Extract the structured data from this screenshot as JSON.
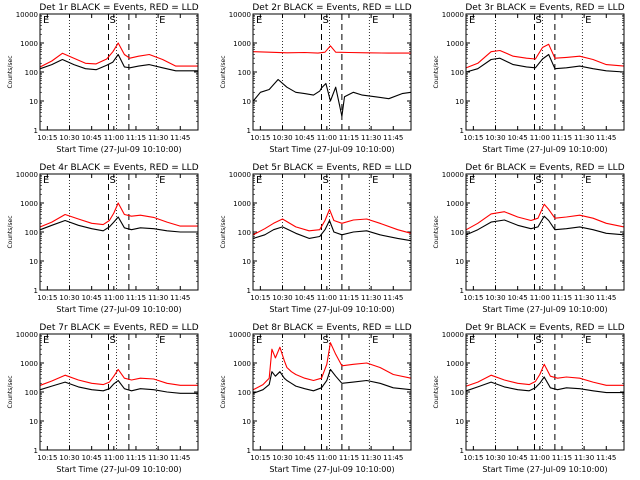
{
  "figure": {
    "background": "#ffffff",
    "x_ticks": [
      "10:15",
      "10:30",
      "10:45",
      "11:00",
      "11:15",
      "11:30",
      "11:45"
    ],
    "x_tick_hours": [
      10.25,
      10.5,
      10.75,
      11.0,
      11.25,
      11.5,
      11.75
    ],
    "y_ticks": [
      "1",
      "10",
      "100",
      "1000",
      "10000"
    ],
    "y_tick_values": [
      1,
      10,
      100,
      1000,
      10000
    ],
    "xlabel": "Start Time (27-Jul-09 10:10:00)",
    "ylabel": "Counts/sec",
    "xlim_hours": [
      10.167,
      11.95
    ],
    "ylim": [
      1,
      10000
    ],
    "y_scale": "log",
    "colors": {
      "events": "#000000",
      "lld": "#ff0000"
    },
    "marker_labels": {
      "start": "S",
      "end": "E"
    }
  },
  "chart_data": [
    {
      "type": "line",
      "title": "Det 1r BLACK = Events, RED = LLD",
      "dotted_lines": [
        10.5,
        11.03,
        11.48
      ],
      "dashed_lines": [
        10.94,
        11.17
      ],
      "marker_letters": [
        {
          "x": 10.19,
          "text": "E"
        },
        {
          "x": 10.94,
          "text": "S"
        },
        {
          "x": 11.5,
          "text": "E"
        }
      ],
      "series": [
        {
          "color": "#ff0000",
          "x": [
            10.17,
            10.3,
            10.42,
            10.55,
            10.68,
            10.8,
            10.92,
            10.99,
            11.05,
            11.12,
            11.18,
            11.28,
            11.4,
            11.55,
            11.7,
            11.95
          ],
          "values": [
            150,
            240,
            440,
            300,
            200,
            190,
            280,
            500,
            1000,
            400,
            300,
            350,
            400,
            270,
            160,
            160
          ]
        },
        {
          "color": "#000000",
          "x": [
            10.17,
            10.3,
            10.42,
            10.55,
            10.68,
            10.8,
            10.92,
            10.99,
            11.05,
            11.12,
            11.18,
            11.28,
            11.4,
            11.55,
            11.7,
            11.95
          ],
          "values": [
            130,
            180,
            270,
            180,
            130,
            120,
            170,
            220,
            400,
            150,
            140,
            160,
            180,
            140,
            110,
            110
          ]
        }
      ]
    },
    {
      "type": "line",
      "title": "Det 2r BLACK = Events, RED = LLD",
      "dotted_lines": [
        10.5,
        11.03,
        11.48
      ],
      "dashed_lines": [
        10.94,
        11.17
      ],
      "marker_letters": [
        {
          "x": 10.19,
          "text": "E"
        },
        {
          "x": 10.94,
          "text": "S"
        },
        {
          "x": 11.5,
          "text": "E"
        }
      ],
      "series": [
        {
          "color": "#ff0000",
          "x": [
            10.17,
            10.35,
            10.55,
            10.75,
            10.9,
            10.98,
            11.04,
            11.1,
            11.25,
            11.45,
            11.7,
            11.95
          ],
          "values": [
            500,
            480,
            460,
            470,
            450,
            480,
            800,
            480,
            470,
            460,
            450,
            450
          ]
        },
        {
          "color": "#000000",
          "x": [
            10.17,
            10.25,
            10.35,
            10.45,
            10.55,
            10.65,
            10.75,
            10.85,
            10.92,
            10.94,
            10.99,
            11.04,
            11.1,
            11.17,
            11.2,
            11.3,
            11.4,
            11.55,
            11.7,
            11.85,
            11.95
          ],
          "values": [
            10,
            20,
            25,
            55,
            30,
            20,
            18,
            16,
            22,
            28,
            40,
            10,
            30,
            3,
            14,
            20,
            16,
            14,
            12,
            18,
            20
          ]
        }
      ]
    },
    {
      "type": "line",
      "title": "Det 3r BLACK = Events, RED = LLD",
      "dotted_lines": [
        10.5,
        11.03,
        11.48
      ],
      "dashed_lines": [
        10.94,
        11.17
      ],
      "marker_letters": [
        {
          "x": 10.19,
          "text": "E"
        },
        {
          "x": 10.94,
          "text": "S"
        },
        {
          "x": 11.5,
          "text": "E"
        }
      ],
      "series": [
        {
          "color": "#ff0000",
          "x": [
            10.17,
            10.3,
            10.45,
            10.55,
            10.7,
            10.85,
            10.95,
            11.03,
            11.1,
            11.17,
            11.3,
            11.45,
            11.6,
            11.75,
            11.95
          ],
          "values": [
            140,
            200,
            500,
            550,
            350,
            300,
            280,
            700,
            900,
            300,
            320,
            350,
            270,
            180,
            160
          ]
        },
        {
          "color": "#000000",
          "x": [
            10.17,
            10.3,
            10.45,
            10.55,
            10.7,
            10.85,
            10.95,
            11.03,
            11.1,
            11.17,
            11.3,
            11.45,
            11.6,
            11.75,
            11.95
          ],
          "values": [
            100,
            130,
            270,
            300,
            180,
            150,
            140,
            280,
            400,
            130,
            140,
            160,
            130,
            110,
            100
          ]
        }
      ]
    },
    {
      "type": "line",
      "title": "Det 4r BLACK = Events, RED = LLD",
      "dotted_lines": [
        10.5,
        11.03,
        11.48
      ],
      "dashed_lines": [
        10.94,
        11.17
      ],
      "marker_letters": [
        {
          "x": 10.19,
          "text": "E"
        },
        {
          "x": 10.94,
          "text": "S"
        },
        {
          "x": 11.5,
          "text": "E"
        }
      ],
      "series": [
        {
          "color": "#ff0000",
          "x": [
            10.17,
            10.3,
            10.45,
            10.6,
            10.75,
            10.88,
            10.95,
            11.0,
            11.05,
            11.12,
            11.2,
            11.3,
            11.45,
            11.6,
            11.75,
            11.95
          ],
          "values": [
            150,
            220,
            400,
            280,
            200,
            180,
            250,
            450,
            1000,
            400,
            350,
            380,
            320,
            220,
            160,
            160
          ]
        },
        {
          "color": "#000000",
          "x": [
            10.17,
            10.3,
            10.45,
            10.6,
            10.75,
            10.88,
            10.95,
            11.0,
            11.05,
            11.12,
            11.2,
            11.3,
            11.45,
            11.6,
            11.75,
            11.95
          ],
          "values": [
            120,
            170,
            250,
            170,
            130,
            110,
            150,
            220,
            330,
            140,
            120,
            140,
            130,
            110,
            100,
            100
          ]
        }
      ]
    },
    {
      "type": "line",
      "title": "Det 5r BLACK = Events, RED = LLD",
      "dotted_lines": [
        10.5,
        11.03,
        11.48
      ],
      "dashed_lines": [
        10.94,
        11.17
      ],
      "marker_letters": [
        {
          "x": 10.19,
          "text": "E"
        },
        {
          "x": 10.94,
          "text": "S"
        },
        {
          "x": 11.5,
          "text": "E"
        }
      ],
      "series": [
        {
          "color": "#ff0000",
          "x": [
            10.17,
            10.3,
            10.4,
            10.5,
            10.65,
            10.8,
            10.92,
            10.98,
            11.03,
            11.08,
            11.17,
            11.3,
            11.45,
            11.6,
            11.8,
            11.95
          ],
          "values": [
            80,
            130,
            200,
            280,
            150,
            110,
            120,
            250,
            600,
            250,
            200,
            260,
            280,
            200,
            120,
            90
          ]
        },
        {
          "color": "#000000",
          "x": [
            10.17,
            10.3,
            10.4,
            10.5,
            10.65,
            10.8,
            10.92,
            10.98,
            11.03,
            11.08,
            11.17,
            11.3,
            11.45,
            11.6,
            11.8,
            11.95
          ],
          "values": [
            60,
            80,
            120,
            150,
            90,
            60,
            70,
            120,
            250,
            100,
            80,
            100,
            110,
            80,
            60,
            50
          ]
        }
      ]
    },
    {
      "type": "line",
      "title": "Det 6r BLACK = Events, RED = LLD",
      "dotted_lines": [
        10.5,
        11.03,
        11.48
      ],
      "dashed_lines": [
        10.94,
        11.17
      ],
      "marker_letters": [
        {
          "x": 10.19,
          "text": "E"
        },
        {
          "x": 10.94,
          "text": "S"
        },
        {
          "x": 11.5,
          "text": "E"
        }
      ],
      "series": [
        {
          "color": "#ff0000",
          "x": [
            10.17,
            10.3,
            10.45,
            10.6,
            10.75,
            10.9,
            10.98,
            11.05,
            11.1,
            11.17,
            11.3,
            11.45,
            11.6,
            11.75,
            11.95
          ],
          "values": [
            120,
            200,
            420,
            500,
            330,
            250,
            300,
            900,
            600,
            300,
            330,
            380,
            300,
            200,
            150
          ]
        },
        {
          "color": "#000000",
          "x": [
            10.17,
            10.3,
            10.45,
            10.6,
            10.75,
            10.9,
            10.98,
            11.05,
            11.1,
            11.17,
            11.3,
            11.45,
            11.6,
            11.75,
            11.95
          ],
          "values": [
            80,
            120,
            220,
            260,
            170,
            130,
            150,
            350,
            250,
            120,
            130,
            150,
            120,
            90,
            80
          ]
        }
      ]
    },
    {
      "type": "line",
      "title": "Det 7r BLACK = Events, RED = LLD",
      "dotted_lines": [
        10.5,
        11.03,
        11.48
      ],
      "dashed_lines": [
        10.94,
        11.17
      ],
      "marker_letters": [
        {
          "x": 10.19,
          "text": "E"
        },
        {
          "x": 10.94,
          "text": "S"
        },
        {
          "x": 11.5,
          "text": "E"
        }
      ],
      "series": [
        {
          "color": "#ff0000",
          "x": [
            10.17,
            10.3,
            10.45,
            10.6,
            10.75,
            10.88,
            10.95,
            11.0,
            11.05,
            11.12,
            11.2,
            11.3,
            11.45,
            11.6,
            11.75,
            11.95
          ],
          "values": [
            170,
            240,
            380,
            260,
            200,
            180,
            220,
            350,
            600,
            300,
            260,
            300,
            280,
            200,
            170,
            170
          ]
        },
        {
          "color": "#000000",
          "x": [
            10.17,
            10.3,
            10.45,
            10.6,
            10.75,
            10.88,
            10.95,
            11.0,
            11.05,
            11.12,
            11.2,
            11.3,
            11.45,
            11.6,
            11.75,
            11.95
          ],
          "values": [
            120,
            160,
            220,
            150,
            120,
            110,
            130,
            190,
            250,
            130,
            110,
            130,
            120,
            100,
            90,
            90
          ]
        }
      ]
    },
    {
      "type": "line",
      "title": "Det 8r BLACK = Events, RED = LLD",
      "dotted_lines": [
        10.5,
        11.03,
        11.48
      ],
      "dashed_lines": [
        10.94,
        11.17
      ],
      "marker_letters": [
        {
          "x": 10.19,
          "text": "E"
        },
        {
          "x": 10.94,
          "text": "S"
        },
        {
          "x": 11.5,
          "text": "E"
        }
      ],
      "series": [
        {
          "color": "#ff0000",
          "x": [
            10.17,
            10.28,
            10.35,
            10.38,
            10.42,
            10.47,
            10.52,
            10.55,
            10.6,
            10.65,
            10.75,
            10.85,
            10.94,
            11.0,
            11.04,
            11.1,
            11.17,
            11.3,
            11.45,
            11.6,
            11.75,
            11.95
          ],
          "values": [
            120,
            180,
            300,
            3000,
            1500,
            3500,
            1200,
            700,
            500,
            400,
            300,
            250,
            300,
            900,
            5000,
            2000,
            800,
            900,
            1000,
            700,
            400,
            300
          ]
        },
        {
          "color": "#000000",
          "x": [
            10.17,
            10.28,
            10.35,
            10.38,
            10.42,
            10.47,
            10.52,
            10.55,
            10.6,
            10.65,
            10.75,
            10.85,
            10.94,
            11.0,
            11.04,
            11.1,
            11.17,
            11.3,
            11.45,
            11.6,
            11.75,
            11.95
          ],
          "values": [
            90,
            120,
            180,
            500,
            350,
            500,
            300,
            250,
            200,
            160,
            130,
            110,
            140,
            250,
            600,
            350,
            200,
            220,
            250,
            200,
            140,
            120
          ]
        }
      ]
    },
    {
      "type": "line",
      "title": "Det 9r BLACK = Events, RED = LLD",
      "dotted_lines": [
        10.5,
        11.03,
        11.48
      ],
      "dashed_lines": [
        10.94,
        11.17
      ],
      "marker_letters": [
        {
          "x": 10.19,
          "text": "E"
        },
        {
          "x": 10.94,
          "text": "S"
        },
        {
          "x": 11.5,
          "text": "E"
        }
      ],
      "series": [
        {
          "color": "#ff0000",
          "x": [
            10.17,
            10.3,
            10.45,
            10.6,
            10.75,
            10.88,
            10.95,
            11.0,
            11.05,
            11.12,
            11.2,
            11.3,
            11.45,
            11.6,
            11.75,
            11.95
          ],
          "values": [
            160,
            220,
            380,
            260,
            200,
            180,
            230,
            400,
            900,
            350,
            300,
            330,
            300,
            220,
            170,
            170
          ]
        },
        {
          "color": "#000000",
          "x": [
            10.17,
            10.3,
            10.45,
            10.6,
            10.75,
            10.88,
            10.95,
            11.0,
            11.05,
            11.12,
            11.2,
            11.3,
            11.45,
            11.6,
            11.75,
            11.95
          ],
          "values": [
            110,
            150,
            220,
            150,
            120,
            110,
            140,
            200,
            330,
            140,
            120,
            140,
            130,
            110,
            95,
            95
          ]
        }
      ]
    }
  ]
}
